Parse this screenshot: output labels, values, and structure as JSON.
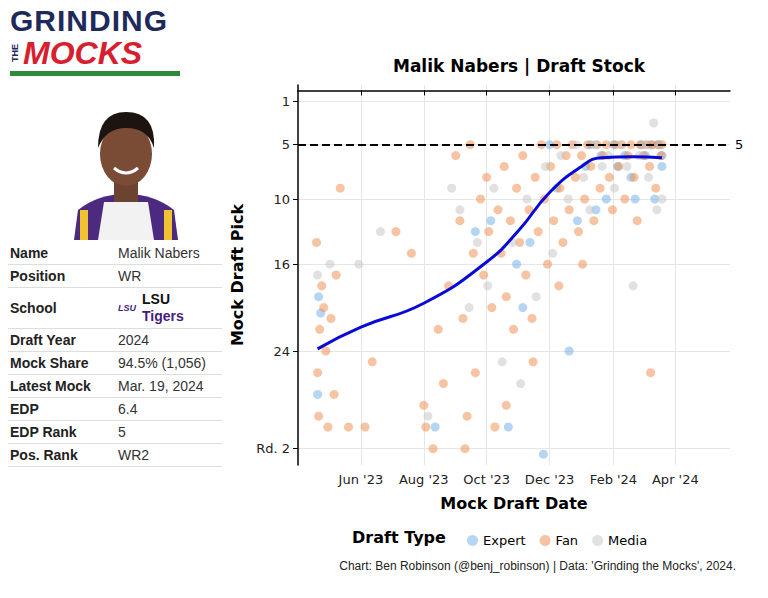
{
  "logo": {
    "line1": "GRINDING",
    "small": "THE",
    "line2": "MOCKS"
  },
  "profile": {
    "rows": [
      {
        "label": "Name",
        "value": "Malik Nabers"
      },
      {
        "label": "Position",
        "value": "WR"
      },
      {
        "label": "School",
        "logo": "LSU",
        "value": [
          "LSU",
          "Tigers"
        ]
      },
      {
        "label": "Draft Year",
        "value": "2024"
      },
      {
        "label": "Mock Share",
        "value": "94.5% (1,056)"
      },
      {
        "label": "Latest Mock",
        "value": "Mar. 19, 2024"
      },
      {
        "label": "EDP",
        "value": "6.4"
      },
      {
        "label": "EDP Rank",
        "value": "5"
      },
      {
        "label": "Pos. Rank",
        "value": "WR2"
      }
    ]
  },
  "chart_data": {
    "type": "scatter",
    "title": "Malik Nabers | Draft Stock",
    "x_label": "Mock Draft Date",
    "y_label": "Mock Draft Pick",
    "marker": "circle",
    "grid": true,
    "legend": "bottom",
    "legend_title": "Draft Type",
    "caption": "Chart: Ben Robinson (@benj_robinson) | Data: 'Grinding the Mocks', 2024.",
    "xlim": [
      "2023-04-01",
      "2024-05-24"
    ],
    "xticks": [
      {
        "value": "2023-06-01",
        "label": "Jun '23"
      },
      {
        "value": "2023-08-01",
        "label": "Aug '23"
      },
      {
        "value": "2023-10-01",
        "label": "Oct '23"
      },
      {
        "value": "2023-12-01",
        "label": "Dec '23"
      },
      {
        "value": "2024-02-01",
        "label": "Feb '24"
      },
      {
        "value": "2024-04-01",
        "label": "Apr '24"
      }
    ],
    "ylim": [
      -0.5,
      34.5
    ],
    "yticks": [
      1,
      5,
      10,
      16,
      24,
      {
        "value": 33,
        "label": "Rd. 2"
      }
    ],
    "reference_line": {
      "value": 5,
      "line_style": "dashed",
      "color": "#000000"
    },
    "trend": {
      "color": "#0a0ad8",
      "line_style": "solid",
      "x": [
        "2023-04-20",
        "2023-06-01",
        "2023-08-01",
        "2023-10-01",
        "2023-11-01",
        "2023-12-01",
        "2024-01-01",
        "2024-01-20",
        "2024-02-20",
        "2024-03-19"
      ],
      "values": [
        23.8,
        21.8,
        19.6,
        15.8,
        12.9,
        9.4,
        7.0,
        6.2,
        6.1,
        6.2
      ]
    },
    "series": [
      {
        "name": "Expert",
        "color": "#6baee6",
        "x": [
          "2023-04-21",
          "2023-04-23",
          "2023-04-20",
          "2023-08-12",
          "2023-09-20",
          "2023-10-05",
          "2023-10-22",
          "2023-10-30",
          "2023-11-05",
          "2023-11-12",
          "2023-11-25",
          "2023-12-01",
          "2023-12-08",
          "2023-12-20",
          "2023-12-28",
          "2024-01-05",
          "2024-01-10",
          "2024-01-15",
          "2024-01-20",
          "2024-01-25",
          "2024-02-01",
          "2024-02-05",
          "2024-02-12",
          "2024-02-18",
          "2024-02-22",
          "2024-02-28",
          "2024-03-03",
          "2024-03-08",
          "2024-03-12",
          "2024-03-15",
          "2024-03-19",
          "2024-03-19"
        ],
        "values": [
          19,
          20.5,
          28,
          31,
          13,
          12,
          31,
          16,
          20,
          14,
          33.5,
          5,
          9,
          24,
          12,
          7,
          5,
          11,
          6,
          10,
          5,
          7,
          6,
          8,
          10,
          5,
          6,
          5,
          10,
          5,
          6,
          7
        ]
      },
      {
        "name": "Fan",
        "color": "#ee8a45",
        "x": [
          "2023-04-19",
          "2023-04-20",
          "2023-04-21",
          "2023-04-22",
          "2023-04-24",
          "2023-04-26",
          "2023-04-28",
          "2023-04-30",
          "2023-05-03",
          "2023-05-06",
          "2023-05-08",
          "2023-05-12",
          "2023-05-20",
          "2023-06-05",
          "2023-06-12",
          "2023-07-05",
          "2023-07-20",
          "2023-08-01",
          "2023-08-03",
          "2023-08-10",
          "2023-08-15",
          "2023-08-20",
          "2023-08-25",
          "2023-09-01",
          "2023-09-05",
          "2023-09-08",
          "2023-09-12",
          "2023-09-15",
          "2023-09-18",
          "2023-09-20",
          "2023-09-25",
          "2023-09-28",
          "2023-10-01",
          "2023-10-03",
          "2023-10-06",
          "2023-10-09",
          "2023-10-12",
          "2023-10-15",
          "2023-10-18",
          "2023-10-20",
          "2023-10-24",
          "2023-10-27",
          "2023-10-30",
          "2023-11-02",
          "2023-11-05",
          "2023-11-08",
          "2023-11-11",
          "2023-11-14",
          "2023-11-17",
          "2023-11-20",
          "2023-11-23",
          "2023-11-26",
          "2023-11-29",
          "2023-12-02",
          "2023-12-05",
          "2023-12-08",
          "2023-12-11",
          "2023-12-14",
          "2023-12-17",
          "2023-12-20",
          "2023-12-23",
          "2023-12-26",
          "2023-12-29",
          "2024-01-01",
          "2024-01-04",
          "2024-01-07",
          "2024-01-10",
          "2024-01-13",
          "2024-01-16",
          "2024-01-19",
          "2024-01-22",
          "2024-01-25",
          "2024-01-28",
          "2024-01-31",
          "2024-02-03",
          "2024-02-06",
          "2024-02-09",
          "2024-02-12",
          "2024-02-15",
          "2024-02-18",
          "2024-02-21",
          "2024-02-24",
          "2024-02-27",
          "2024-03-01",
          "2024-03-04",
          "2024-03-07",
          "2024-03-10",
          "2024-03-13",
          "2024-03-16",
          "2024-03-18",
          "2024-03-19",
          "2024-03-08",
          "2024-01-02",
          "2023-12-10",
          "2023-11-15",
          "2023-10-20",
          "2023-09-10"
        ],
        "values": [
          14,
          26,
          30,
          22,
          18,
          20,
          24,
          31,
          21,
          28,
          17,
          9,
          31,
          31,
          25,
          13,
          15,
          29,
          31,
          33,
          22,
          27,
          18,
          6,
          12,
          21,
          30,
          5,
          15,
          26,
          10,
          17,
          8,
          13,
          20,
          31,
          11,
          15,
          7,
          19,
          12,
          22,
          9,
          14,
          6,
          17,
          11,
          21,
          8,
          13,
          5,
          10,
          16,
          7,
          12,
          5,
          9,
          14,
          6,
          11,
          5,
          8,
          13,
          6,
          10,
          5,
          7,
          12,
          5,
          9,
          6,
          5,
          8,
          11,
          5,
          7,
          5,
          10,
          6,
          5,
          8,
          12,
          5,
          6,
          5,
          7,
          5,
          9,
          5,
          6,
          5,
          26,
          16,
          18,
          25,
          29,
          33
        ]
      },
      {
        "name": "Media",
        "color": "#c4c4c4",
        "x": [
          "2023-04-20",
          "2023-05-02",
          "2023-05-30",
          "2023-06-20",
          "2023-08-05",
          "2023-08-28",
          "2023-09-05",
          "2023-09-14",
          "2023-09-22",
          "2023-10-02",
          "2023-10-08",
          "2023-10-16",
          "2023-10-26",
          "2023-11-03",
          "2023-11-09",
          "2023-11-18",
          "2023-11-27",
          "2023-12-04",
          "2023-12-12",
          "2023-12-19",
          "2023-12-27",
          "2024-01-03",
          "2024-01-09",
          "2024-01-14",
          "2024-01-21",
          "2024-01-27",
          "2024-02-02",
          "2024-02-08",
          "2024-02-14",
          "2024-02-20",
          "2024-02-26",
          "2024-03-02",
          "2024-03-06",
          "2024-03-11",
          "2024-03-14",
          "2024-03-17",
          "2024-03-19"
        ],
        "values": [
          17,
          16,
          16,
          13,
          30,
          9,
          11,
          20,
          14,
          18,
          9,
          25,
          14,
          27,
          10,
          19,
          7,
          15,
          6,
          10,
          5,
          8,
          11,
          5,
          7,
          6,
          9,
          5,
          7,
          18,
          6,
          5,
          8,
          3,
          11,
          5,
          10
        ]
      }
    ]
  }
}
